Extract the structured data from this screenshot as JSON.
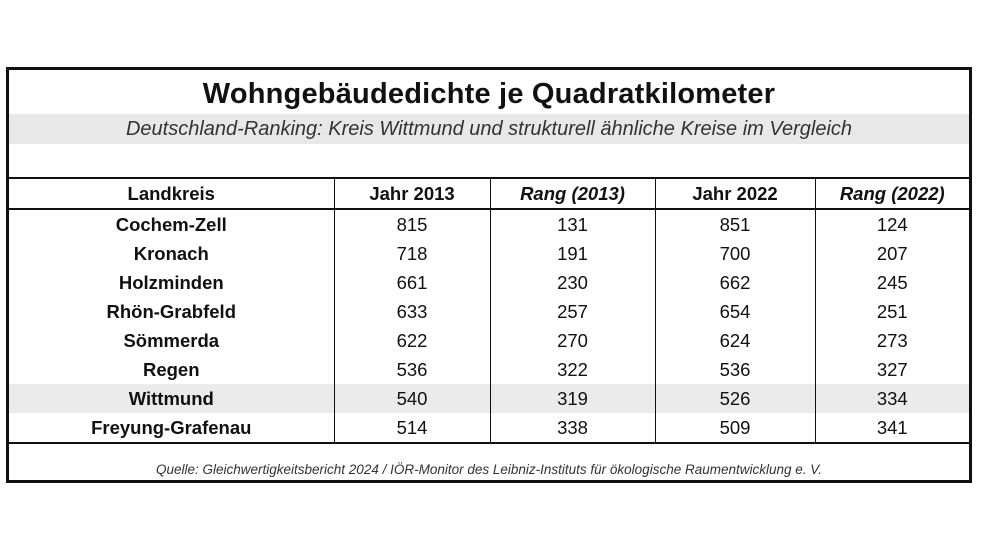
{
  "title": "Wohngebäudedichte je Quadratkilometer",
  "subtitle": "Deutschland-Ranking: Kreis Wittmund und strukturell ähnliche Kreise im Vergleich",
  "table": {
    "headers": [
      "Landkreis",
      "Jahr 2013",
      "Rang (2013)",
      "Jahr 2022",
      "Rang (2022)"
    ],
    "rows": [
      [
        "Cochem-Zell",
        "815",
        "131",
        "851",
        "124"
      ],
      [
        "Kronach",
        "718",
        "191",
        "700",
        "207"
      ],
      [
        "Holzminden",
        "661",
        "230",
        "662",
        "245"
      ],
      [
        "Rhön-Grabfeld",
        "633",
        "257",
        "654",
        "251"
      ],
      [
        "Sömmerda",
        "622",
        "270",
        "624",
        "273"
      ],
      [
        "Regen",
        "536",
        "322",
        "536",
        "327"
      ],
      [
        "Wittmund",
        "540",
        "319",
        "526",
        "334"
      ],
      [
        "Freyung-Grafenau",
        "514",
        "338",
        "509",
        "341"
      ]
    ],
    "highlight_row": "Wittmund",
    "highlight_color": "#ebebeb"
  },
  "source": "Quelle: Gleichwertigkeitsbericht  2024 / IÖR-Monitor des Leibniz-Instituts für ökologische Raumentwicklung e. V."
}
